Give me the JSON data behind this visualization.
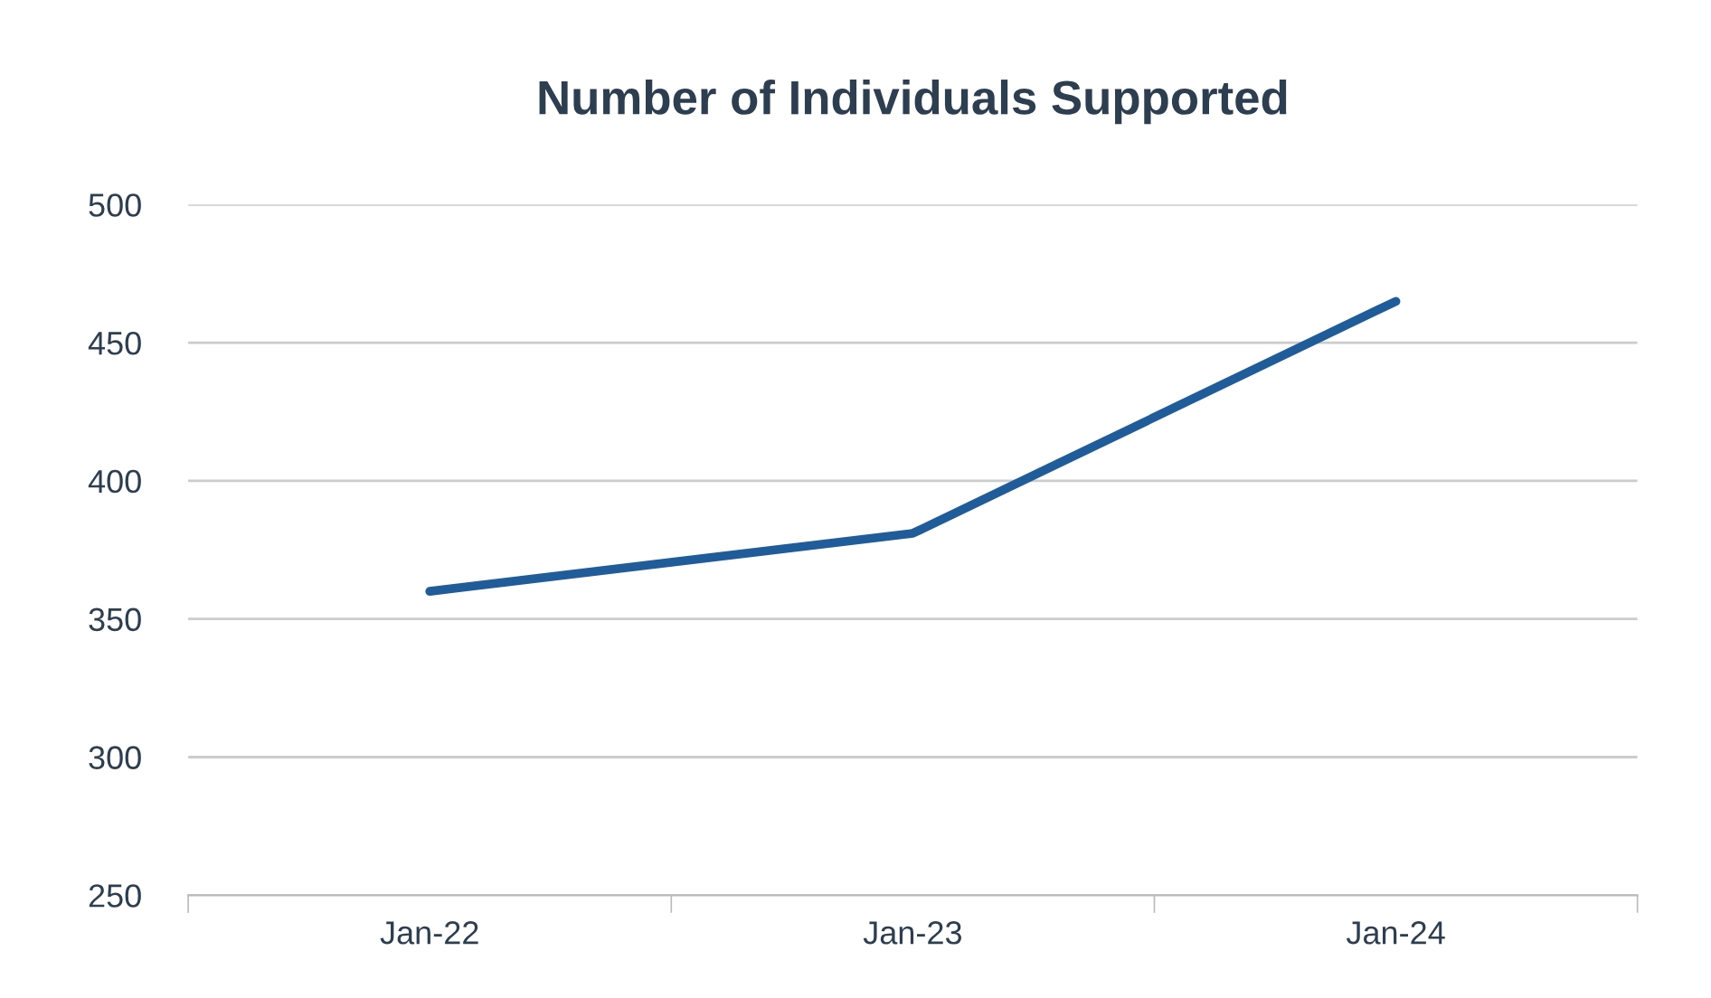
{
  "chart_data": {
    "type": "line",
    "title": "Number of Individuals Supported",
    "categories": [
      "Jan-22",
      "Jan-23",
      "Jan-24"
    ],
    "series": [
      {
        "color": "#1f5c99",
        "values": [
          360,
          381,
          465
        ]
      }
    ],
    "ylim": [
      250,
      500
    ],
    "yticks": [
      250,
      300,
      350,
      400,
      450,
      500
    ],
    "grid": "y",
    "legend": false,
    "marker": "none",
    "line_style": "solid"
  }
}
